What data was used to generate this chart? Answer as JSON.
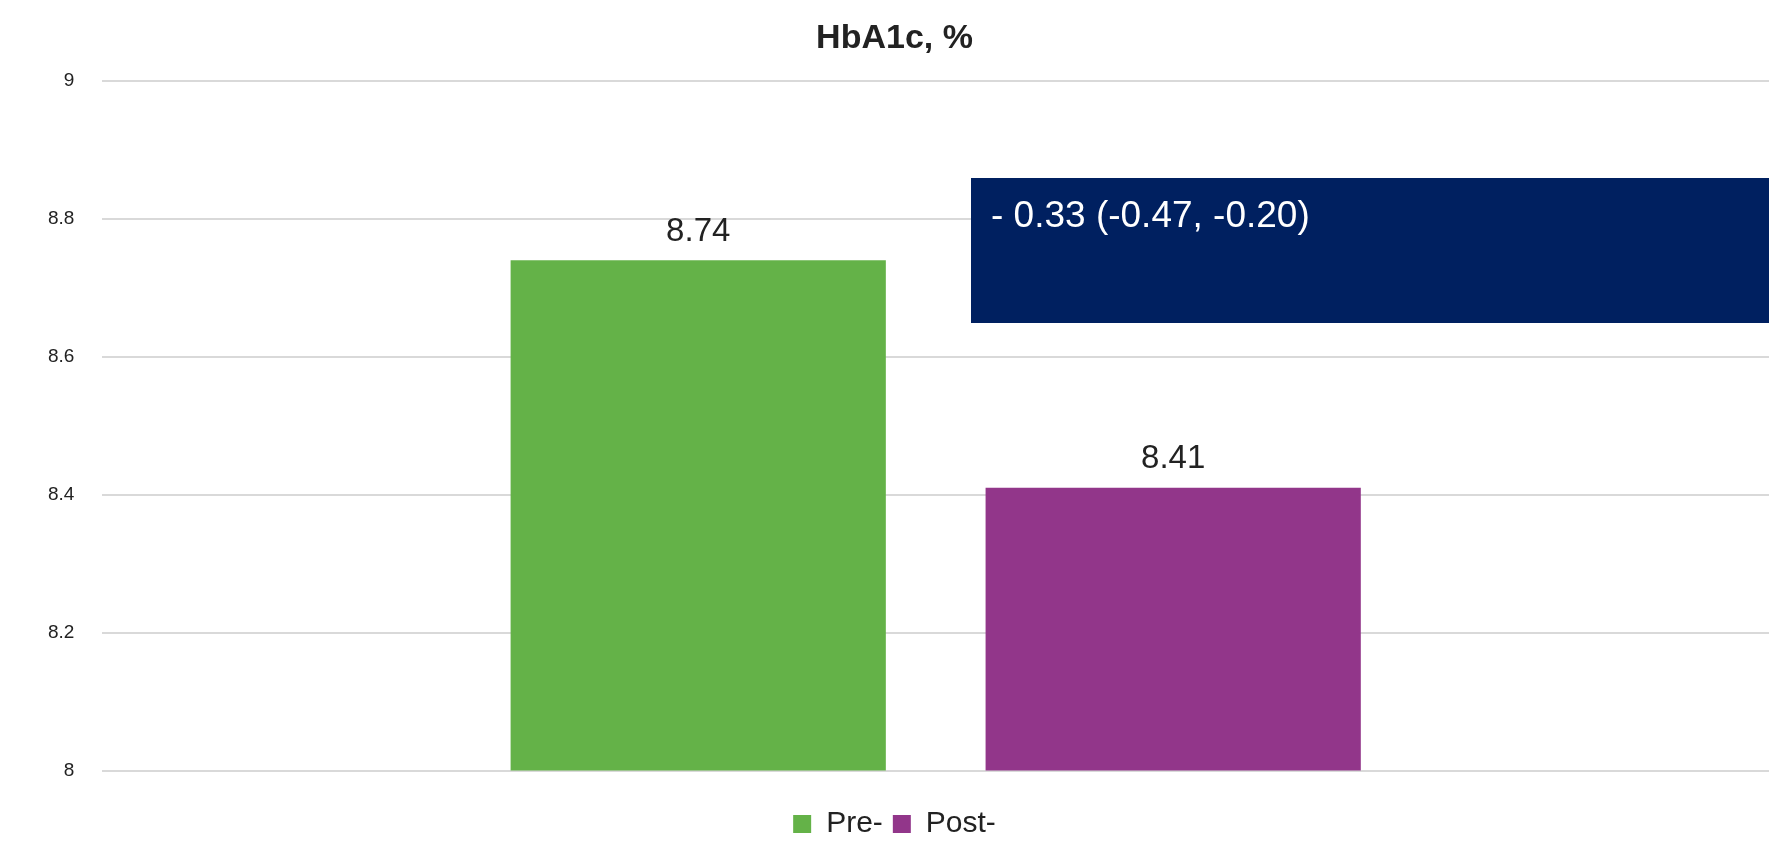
{
  "chart_data": {
    "type": "bar",
    "title": "HbA1c, %",
    "categories": [
      null
    ],
    "series": [
      {
        "name": "Pre-",
        "color": "#64b248",
        "values": [
          8.74
        ]
      },
      {
        "name": "Post-",
        "color": "#92368a",
        "values": [
          8.41
        ]
      }
    ],
    "ylim": [
      8,
      9
    ],
    "yticks": [
      8,
      8.2,
      8.4,
      8.6,
      8.8,
      9
    ],
    "grid": "y",
    "legend": "bottom",
    "data_labels": true,
    "annotations": [
      "- 0.33 (-0.47, -0.20)"
    ]
  }
}
